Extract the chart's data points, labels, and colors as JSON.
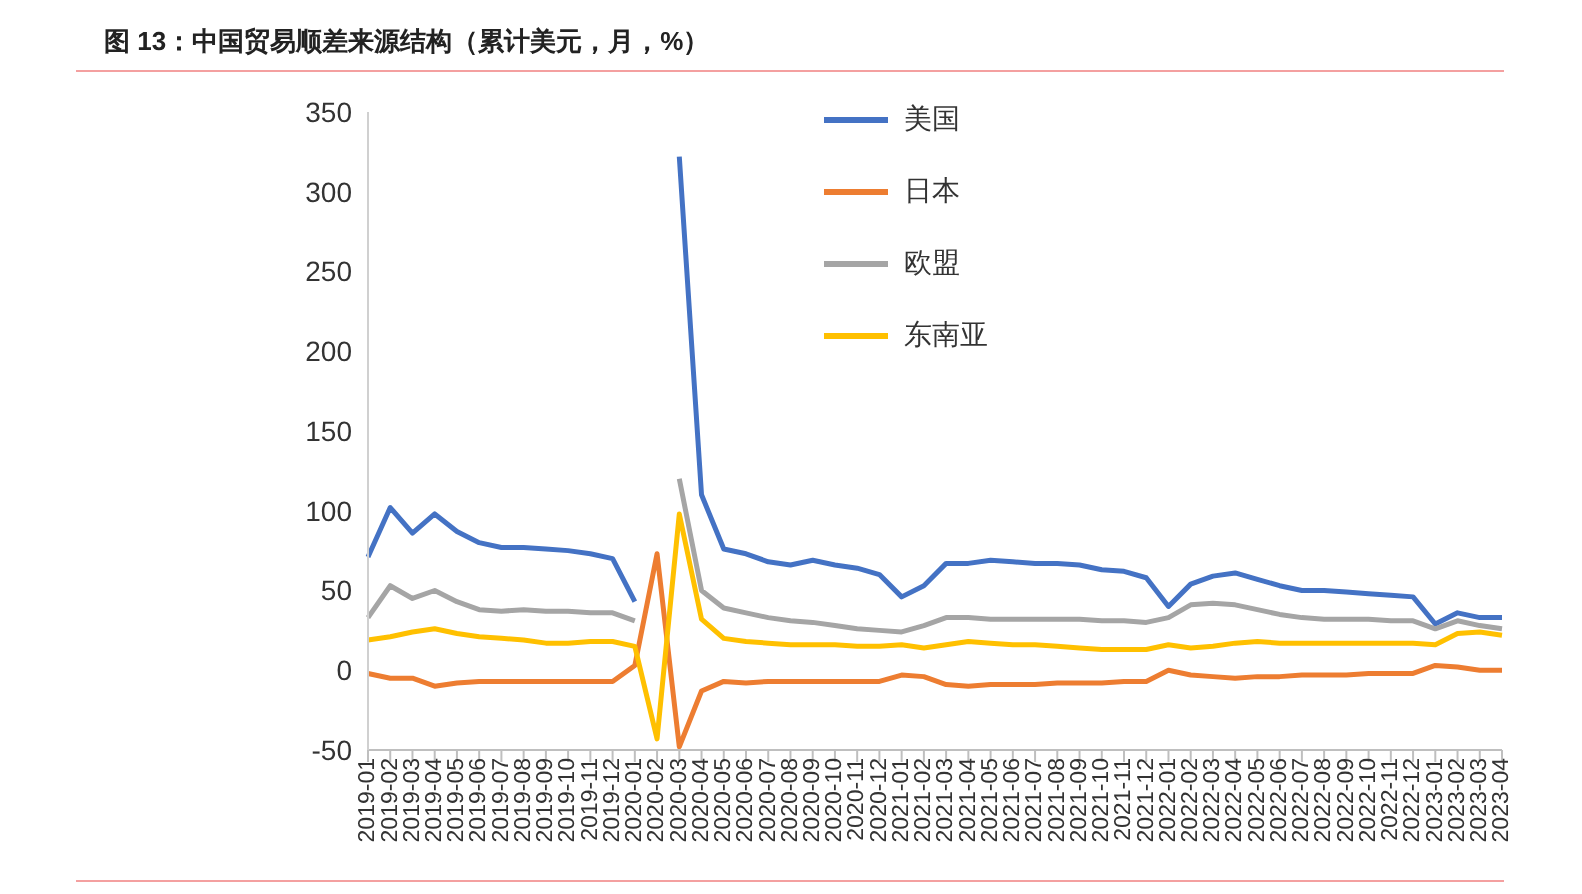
{
  "chart_data": {
    "type": "line",
    "title": "图 13：中国贸易顺差来源结构（累计美元，月，%）",
    "x": [
      "2019-01",
      "2019-02",
      "2019-03",
      "2019-04",
      "2019-05",
      "2019-06",
      "2019-07",
      "2019-08",
      "2019-09",
      "2019-10",
      "2019-11",
      "2019-12",
      "2020-01",
      "2020-02",
      "2020-03",
      "2020-04",
      "2020-05",
      "2020-06",
      "2020-07",
      "2020-08",
      "2020-09",
      "2020-10",
      "2020-11",
      "2020-12",
      "2021-01",
      "2021-02",
      "2021-03",
      "2021-04",
      "2021-05",
      "2021-06",
      "2021-07",
      "2021-08",
      "2021-09",
      "2021-10",
      "2021-11",
      "2021-12",
      "2022-01",
      "2022-02",
      "2022-03",
      "2022-04",
      "2022-05",
      "2022-06",
      "2022-07",
      "2022-08",
      "2022-09",
      "2022-10",
      "2022-11",
      "2022-12",
      "2023-01",
      "2023-02",
      "2023-03",
      "2023-04"
    ],
    "series": [
      {
        "name": "美国",
        "color": "#4472c4",
        "values": [
          71,
          102,
          86,
          98,
          87,
          80,
          77,
          77,
          76,
          75,
          73,
          70,
          43,
          null,
          322,
          110,
          76,
          73,
          68,
          66,
          69,
          66,
          64,
          60,
          46,
          53,
          67,
          67,
          69,
          68,
          67,
          67,
          66,
          63,
          62,
          58,
          40,
          54,
          59,
          61,
          57,
          53,
          50,
          50,
          49,
          48,
          47,
          46,
          29,
          36,
          33,
          33
        ]
      },
      {
        "name": "日本",
        "color": "#ed7d31",
        "values": [
          -2,
          -5,
          -5,
          -10,
          -8,
          -7,
          -7,
          -7,
          -7,
          -7,
          -7,
          -7,
          3,
          73,
          -48,
          -13,
          -7,
          -8,
          -7,
          -7,
          -7,
          -7,
          -7,
          -7,
          -3,
          -4,
          -9,
          -10,
          -9,
          -9,
          -9,
          -8,
          -8,
          -8,
          -7,
          -7,
          0,
          -3,
          -4,
          -5,
          -4,
          -4,
          -3,
          -3,
          -3,
          -2,
          -2,
          -2,
          3,
          2,
          0,
          0
        ]
      },
      {
        "name": "欧盟",
        "color": "#a5a5a5",
        "values": [
          33,
          53,
          45,
          50,
          43,
          38,
          37,
          38,
          37,
          37,
          36,
          36,
          31,
          null,
          120,
          50,
          39,
          36,
          33,
          31,
          30,
          28,
          26,
          25,
          24,
          28,
          33,
          33,
          32,
          32,
          32,
          32,
          32,
          31,
          31,
          30,
          33,
          41,
          42,
          41,
          38,
          35,
          33,
          32,
          32,
          32,
          31,
          31,
          26,
          31,
          28,
          26
        ]
      },
      {
        "name": "东南亚",
        "color": "#ffc000",
        "values": [
          19,
          21,
          24,
          26,
          23,
          21,
          20,
          19,
          17,
          17,
          18,
          18,
          15,
          -43,
          98,
          32,
          20,
          18,
          17,
          16,
          16,
          16,
          15,
          15,
          16,
          14,
          16,
          18,
          17,
          16,
          16,
          15,
          14,
          13,
          13,
          13,
          16,
          14,
          15,
          17,
          18,
          17,
          17,
          17,
          17,
          17,
          17,
          17,
          16,
          23,
          24,
          22
        ]
      }
    ],
    "ylim": [
      -50,
      350
    ],
    "yticks": [
      -50,
      0,
      50,
      100,
      150,
      200,
      250,
      300,
      350
    ],
    "grid": false,
    "legend": "top",
    "marker": "none",
    "line_style": "solid"
  }
}
